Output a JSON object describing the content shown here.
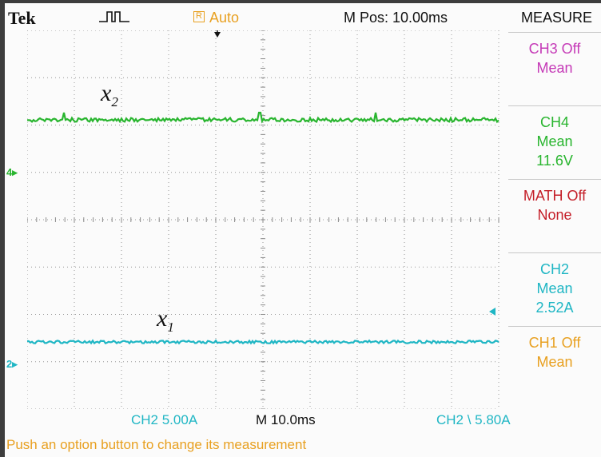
{
  "header": {
    "brand": "Tek",
    "acquisition_mode": "Auto",
    "acq_box_glyph": "R",
    "horizontal_position": "M Pos: 10.00ms",
    "menu_title": "MEASURE"
  },
  "traces": {
    "x2": {
      "label": "x",
      "sub": "2",
      "color": "#29b52f",
      "channel_marker": "4"
    },
    "x1": {
      "label": "x",
      "sub": "1",
      "color": "#1fb6c4",
      "channel_marker": "2"
    }
  },
  "measurements": [
    {
      "line1": "CH3 Off",
      "line2": "Mean",
      "line3": "",
      "color": "#c53ab7"
    },
    {
      "line1": "CH4",
      "line2": "Mean",
      "line3": "11.6V",
      "color": "#29b52f"
    },
    {
      "line1": "MATH Off",
      "line2": "None",
      "line3": "",
      "color": "#c41e28"
    },
    {
      "line1": "CH2",
      "line2": "Mean",
      "line3": "2.52A",
      "color": "#1fb6c4"
    },
    {
      "line1": "CH1 Off",
      "line2": "Mean",
      "line3": "",
      "color": "#e8a020"
    }
  ],
  "footer": {
    "ch2_scale": "CH2  5.00A",
    "timebase": "M 10.0ms",
    "trigger_readout": "CH2 \\ 5.80A",
    "status": "Push an option button to change its measurement"
  }
}
